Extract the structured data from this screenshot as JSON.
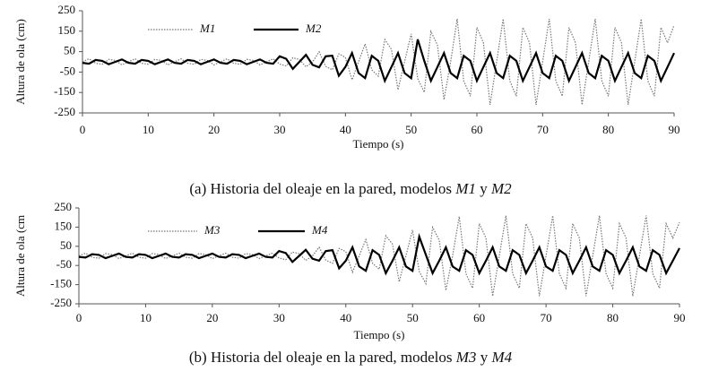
{
  "chart_data": [
    {
      "type": "line",
      "caption": [
        "(a)",
        "Historia del oleaje en la pared, modelos",
        "M1",
        "y",
        "M2"
      ],
      "x_label": "Tiempo (s)",
      "y_label": "Altura de ola (cm)",
      "xlim": [
        0,
        90
      ],
      "xticks": [
        0,
        10,
        20,
        30,
        40,
        50,
        60,
        70,
        80,
        90
      ],
      "ylim": [
        -250,
        250
      ],
      "yticks": [
        -250,
        -150,
        -50,
        50,
        150,
        250
      ],
      "x": [
        0,
        1,
        2,
        3,
        4,
        5,
        6,
        7,
        8,
        9,
        10,
        11,
        12,
        13,
        14,
        15,
        16,
        17,
        18,
        19,
        20,
        21,
        22,
        23,
        24,
        25,
        26,
        27,
        28,
        29,
        30,
        31,
        32,
        33,
        34,
        35,
        36,
        37,
        38,
        39,
        40,
        41,
        42,
        43,
        44,
        45,
        46,
        47,
        48,
        49,
        50,
        51,
        52,
        53,
        54,
        55,
        56,
        57,
        58,
        59,
        60,
        61,
        62,
        63,
        64,
        65,
        66,
        67,
        68,
        69,
        70,
        71,
        72,
        73,
        74,
        75,
        76,
        77,
        78,
        79,
        80,
        81,
        82,
        83,
        84,
        85,
        86,
        87,
        88,
        89,
        90
      ],
      "series": [
        {
          "name": "M1",
          "color": "#777777",
          "line_style": "dotted",
          "values": [
            0,
            15,
            -7,
            -12,
            12,
            7,
            -15,
            0,
            15,
            -7,
            -12,
            12,
            7,
            -15,
            0,
            15,
            -7,
            -12,
            12,
            7,
            -15,
            0,
            15,
            -7,
            -12,
            12,
            7,
            -15,
            0,
            15,
            -11,
            -20,
            20,
            11,
            -24,
            0,
            49,
            -22,
            -39,
            39,
            22,
            -88,
            0,
            88,
            -39,
            -70,
            109,
            61,
            -137,
            0,
            137,
            -82,
            -149,
            149,
            82,
            -185,
            0,
            210,
            -93,
            -168,
            168,
            93,
            -210,
            0,
            210,
            -93,
            -168,
            168,
            93,
            -210,
            0,
            210,
            -93,
            -168,
            168,
            93,
            -210,
            0,
            210,
            -93,
            -168,
            168,
            93,
            -210,
            0,
            210,
            -93,
            -168,
            168,
            93,
            180
          ]
        },
        {
          "name": "M2",
          "color": "#000000",
          "line_style": "solid",
          "values": [
            -5,
            -9,
            9,
            5,
            -12,
            0,
            12,
            -5,
            -9,
            9,
            5,
            -12,
            0,
            12,
            -5,
            -9,
            9,
            5,
            -12,
            0,
            12,
            -5,
            -9,
            9,
            5,
            -12,
            0,
            12,
            -5,
            -9,
            27,
            15,
            -34,
            0,
            34,
            -15,
            -27,
            27,
            30,
            -68,
            -25,
            43,
            -55,
            -80,
            30,
            5,
            -93,
            -25,
            43,
            -55,
            -80,
            110,
            5,
            -93,
            -25,
            43,
            -55,
            -80,
            30,
            5,
            -93,
            -25,
            43,
            -55,
            -80,
            30,
            5,
            -93,
            -25,
            43,
            -55,
            -80,
            30,
            5,
            -93,
            -25,
            43,
            -55,
            -80,
            30,
            5,
            -93,
            -25,
            43,
            -55,
            -80,
            30,
            5,
            -93,
            -25,
            43
          ]
        }
      ],
      "legend": "top-left"
    },
    {
      "type": "line",
      "caption": [
        "(b)",
        "Historia del oleaje en la pared, modelos",
        "M3",
        "y",
        "M4"
      ],
      "x_label": "Tiempo (s)",
      "y_label": "Altura de ola (cm",
      "xlim": [
        0,
        90
      ],
      "xticks": [
        0,
        10,
        20,
        30,
        40,
        50,
        60,
        70,
        80,
        90
      ],
      "ylim": [
        -250,
        250
      ],
      "yticks": [
        -250,
        -150,
        -50,
        50,
        150,
        250
      ],
      "x": [
        0,
        1,
        2,
        3,
        4,
        5,
        6,
        7,
        8,
        9,
        10,
        11,
        12,
        13,
        14,
        15,
        16,
        17,
        18,
        19,
        20,
        21,
        22,
        23,
        24,
        25,
        26,
        27,
        28,
        29,
        30,
        31,
        32,
        33,
        34,
        35,
        36,
        37,
        38,
        39,
        40,
        41,
        42,
        43,
        44,
        45,
        46,
        47,
        48,
        49,
        50,
        51,
        52,
        53,
        54,
        55,
        56,
        57,
        58,
        59,
        60,
        61,
        62,
        63,
        64,
        65,
        66,
        67,
        68,
        69,
        70,
        71,
        72,
        73,
        74,
        75,
        76,
        77,
        78,
        79,
        80,
        81,
        82,
        83,
        84,
        85,
        86,
        87,
        88,
        89,
        90
      ],
      "series": [
        {
          "name": "M3",
          "color": "#777777",
          "line_style": "dotted",
          "values": [
            0,
            14,
            -7,
            -12,
            12,
            7,
            -14,
            0,
            14,
            -7,
            -12,
            12,
            7,
            -14,
            0,
            14,
            -7,
            -12,
            12,
            7,
            -14,
            0,
            14,
            -7,
            -12,
            12,
            7,
            -14,
            0,
            14,
            -11,
            -20,
            20,
            11,
            -24,
            0,
            45,
            -22,
            -39,
            39,
            22,
            -85,
            0,
            85,
            -39,
            -70,
            105,
            61,
            -135,
            0,
            135,
            -82,
            -145,
            149,
            82,
            -180,
            0,
            205,
            -93,
            -168,
            168,
            93,
            -210,
            0,
            210,
            -93,
            -168,
            168,
            93,
            -210,
            0,
            210,
            -93,
            -168,
            168,
            93,
            -210,
            0,
            210,
            -93,
            -168,
            168,
            93,
            -210,
            0,
            210,
            -93,
            -168,
            168,
            93,
            175
          ]
        },
        {
          "name": "M4",
          "color": "#000000",
          "line_style": "solid",
          "values": [
            -5,
            -9,
            9,
            5,
            -12,
            0,
            12,
            -5,
            -9,
            9,
            5,
            -12,
            0,
            12,
            -5,
            -9,
            9,
            5,
            -12,
            0,
            12,
            -5,
            -9,
            9,
            5,
            -12,
            0,
            12,
            -5,
            -9,
            25,
            15,
            -32,
            0,
            32,
            -15,
            -25,
            25,
            30,
            -65,
            -25,
            45,
            -55,
            -78,
            30,
            5,
            -90,
            -25,
            45,
            -55,
            -78,
            100,
            5,
            -90,
            -25,
            45,
            -55,
            -78,
            30,
            5,
            -90,
            -25,
            45,
            -55,
            -78,
            30,
            5,
            -90,
            -25,
            45,
            -55,
            -78,
            30,
            5,
            -90,
            -25,
            45,
            -55,
            -78,
            30,
            5,
            -90,
            -25,
            45,
            -55,
            -78,
            30,
            5,
            -90,
            -25,
            40
          ]
        }
      ],
      "legend": "top-left"
    }
  ]
}
